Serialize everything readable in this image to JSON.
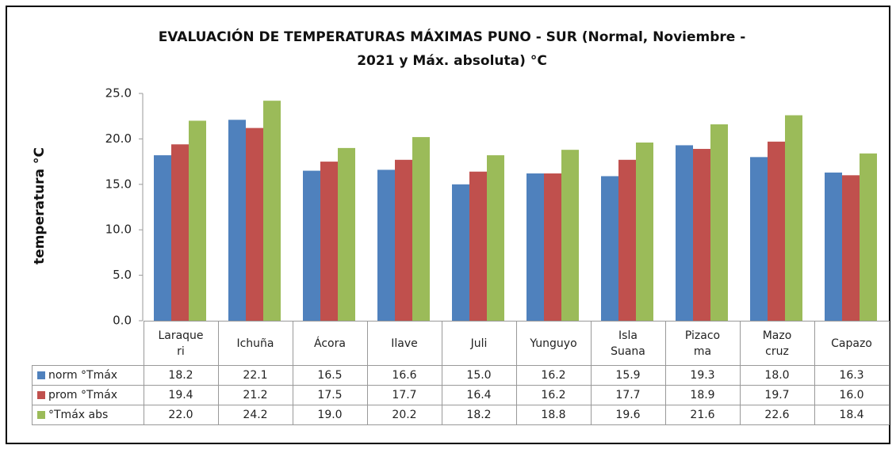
{
  "chart_data": {
    "type": "bar",
    "title": "EVALUACIÓN DE TEMPERATURAS MÁXIMAS PUNO - SUR  (Normal, Noviembre -\n2021 y Máx. absoluta) °C",
    "y_label": "temperatura °C",
    "categories": [
      "Laraque\nri",
      "Ichuña",
      "Ácora",
      "Ilave",
      "Juli",
      "Yunguyo",
      "Isla\nSuana",
      "Pizaco\nma",
      "Mazo\ncruz",
      "Capazo"
    ],
    "series": [
      {
        "name": "norm °Tmáx",
        "color": "#4f81bd",
        "values": [
          18.2,
          22.1,
          16.5,
          16.6,
          15,
          16.2,
          15.9,
          19.3,
          18,
          16.3
        ],
        "value_labels": [
          "18.2",
          "22.1",
          "16.5",
          "16.6",
          "15.0",
          "16.2",
          "15.9",
          "19.3",
          "18.0",
          "16.3"
        ]
      },
      {
        "name": "prom °Tmáx",
        "color": "#c0504d",
        "values": [
          19.4,
          21.2,
          17.5,
          17.7,
          16.4,
          16.2,
          17.7,
          18.9,
          19.7,
          16
        ],
        "value_labels": [
          "19.4",
          "21.2",
          "17.5",
          "17.7",
          "16.4",
          "16.2",
          "17.7",
          "18.9",
          "19.7",
          "16.0"
        ]
      },
      {
        "name": "°Tmáx abs",
        "color": "#9bbb59",
        "values": [
          22,
          24.2,
          19,
          20.2,
          18.2,
          18.8,
          19.6,
          21.6,
          22.6,
          18.4
        ],
        "value_labels": [
          "22.0",
          "24.2",
          "19.0",
          "20.2",
          "18.2",
          "18.8",
          "19.6",
          "21.6",
          "22.6",
          "18.4"
        ]
      }
    ],
    "ylim": [
      0,
      25
    ],
    "yticks": [
      {
        "value": 0,
        "label": "0.0"
      },
      {
        "value": 5,
        "label": "5.0"
      },
      {
        "value": 10,
        "label": "10.0"
      },
      {
        "value": 15,
        "label": "15.0"
      },
      {
        "value": 20,
        "label": "20.0"
      },
      {
        "value": 25,
        "label": "25.0"
      }
    ],
    "grid": false
  }
}
